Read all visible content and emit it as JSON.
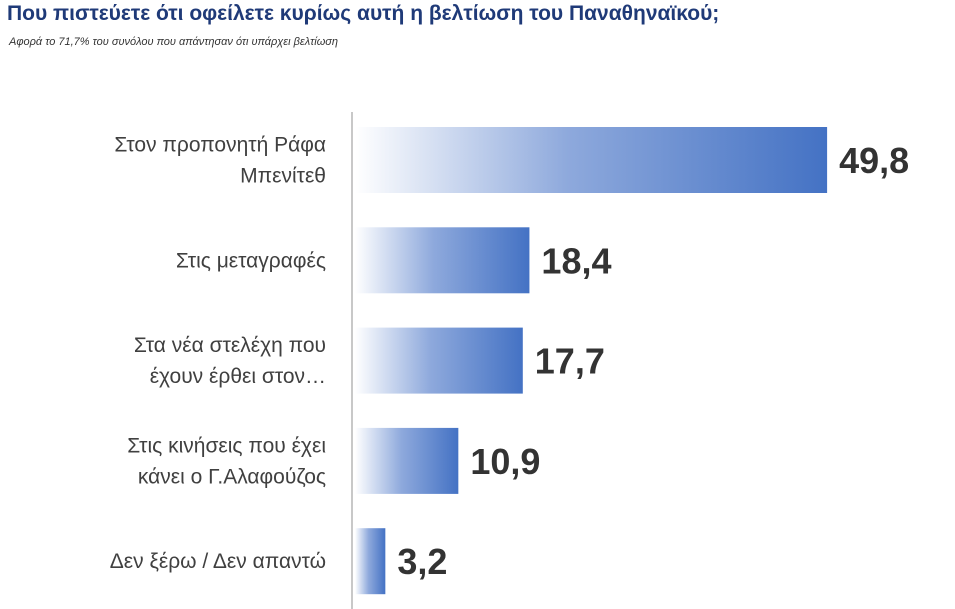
{
  "title": "Που πιστεύετε ότι οφείλετε κυρίως αυτή η βελτίωση του Παναθηναϊκού;",
  "subtitle": "Αφορά το 71,7% του συνόλου που απάντησαν ότι υπάρχει βελτίωση",
  "colors": {
    "title": "#1f3a78",
    "bar_start": "#ffffff",
    "bar_end": "#4472c4",
    "axis": "#c8c8c8"
  },
  "chart_data": {
    "type": "bar",
    "orientation": "horizontal",
    "title": "Που πιστεύετε ότι οφείλετε κυρίως αυτή η βελτίωση του Παναθηναϊκού;",
    "subtitle": "Αφορά το 71,7% του συνόλου που απάντησαν ότι υπάρχει βελτίωση",
    "categories": [
      [
        "Στον προπονητή Ράφα",
        "Μπενίτεθ"
      ],
      [
        "Στις μεταγραφές"
      ],
      [
        "Στα νέα στελέχη που",
        "έχουν έρθει στον…"
      ],
      [
        "Στις κινήσεις που έχει",
        "κάνει ο Γ.Αλαφούζος"
      ],
      [
        "Δεν ξέρω / Δεν απαντώ"
      ]
    ],
    "values": [
      49.8,
      18.4,
      17.7,
      10.9,
      3.2
    ],
    "value_labels": [
      "49,8",
      "18,4",
      "17,7",
      "10,9",
      "3,2"
    ],
    "xlim": [
      0,
      50
    ],
    "grid": false,
    "legend": "none"
  }
}
